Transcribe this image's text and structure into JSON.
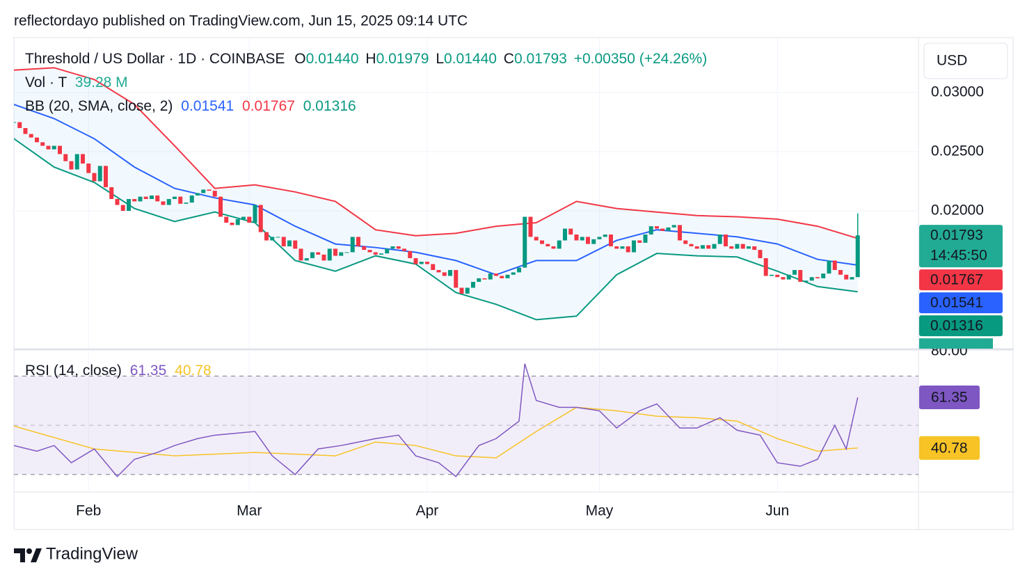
{
  "header": {
    "text": "reflectordayo published on TradingView.com, Jun 15, 2025 09:14 UTC"
  },
  "footer": {
    "brand": "TradingView"
  },
  "chart_data": {
    "type": "candlestick",
    "symbol": "Threshold / US Dollar · 1D · COINBASE",
    "currency": "USD",
    "ohlc": {
      "labels": [
        "O",
        "H",
        "L",
        "C"
      ],
      "values": [
        0.0144,
        0.01979,
        0.0144,
        0.01793
      ],
      "value_labels": [
        "0.01440",
        "0.01979",
        "0.01440",
        "0.01793"
      ]
    },
    "change_label": "+0.00350 (+24.26%)",
    "volume": {
      "label": "Vol · T",
      "value": 39.28,
      "value_label": "39.28 M"
    },
    "countdown": "14:45:50",
    "up_color": "#089981",
    "down_color": "#f23645",
    "xlim": [
      0,
      157.58
    ],
    "month_ticks": [
      {
        "value": 13,
        "label": "Feb"
      },
      {
        "value": 41,
        "label": "Mar"
      },
      {
        "value": 72,
        "label": "Apr"
      },
      {
        "value": 102,
        "label": "May"
      },
      {
        "value": 133,
        "label": "Jun"
      }
    ],
    "ylim": [
      0.00841,
      0.03459
    ],
    "yticks": [
      {
        "value": 0.03,
        "label": "0.03000"
      },
      {
        "value": 0.025,
        "label": "0.02500"
      },
      {
        "value": 0.02,
        "label": "0.02000"
      }
    ],
    "grid": true,
    "closes": [
      0.0275,
      0.027,
      0.0265,
      0.0262,
      0.0258,
      0.0255,
      0.0252,
      0.0255,
      0.0248,
      0.0242,
      0.0235,
      0.0248,
      0.024,
      0.0232,
      0.0225,
      0.0238,
      0.022,
      0.021,
      0.0205,
      0.02,
      0.021,
      0.0208,
      0.0212,
      0.021,
      0.0213,
      0.0208,
      0.0205,
      0.021,
      0.0212,
      0.0206,
      0.0207,
      0.0213,
      0.0215,
      0.0218,
      0.0217,
      0.0212,
      0.0195,
      0.019,
      0.0188,
      0.0193,
      0.0195,
      0.019,
      0.0205,
      0.0182,
      0.0175,
      0.0178,
      0.0178,
      0.017,
      0.0175,
      0.0168,
      0.0158,
      0.016,
      0.0165,
      0.0163,
      0.0158,
      0.0168,
      0.0162,
      0.0165,
      0.0165,
      0.0178,
      0.017,
      0.0167,
      0.0165,
      0.0163,
      0.0164,
      0.0168,
      0.017,
      0.0168,
      0.0166,
      0.016,
      0.0155,
      0.0157,
      0.0155,
      0.015,
      0.0148,
      0.0145,
      0.015,
      0.0135,
      0.013,
      0.0135,
      0.014,
      0.0143,
      0.0142,
      0.0147,
      0.0145,
      0.0143,
      0.0146,
      0.0148,
      0.0152,
      0.0195,
      0.0178,
      0.0175,
      0.0172,
      0.017,
      0.0168,
      0.0175,
      0.0185,
      0.018,
      0.0175,
      0.0178,
      0.0172,
      0.0176,
      0.0178,
      0.018,
      0.017,
      0.0168,
      0.017,
      0.0165,
      0.0175,
      0.0173,
      0.018,
      0.0187,
      0.0185,
      0.0183,
      0.0186,
      0.0188,
      0.0175,
      0.0172,
      0.017,
      0.0168,
      0.0171,
      0.0168,
      0.0172,
      0.018,
      0.017,
      0.0168,
      0.0172,
      0.0168,
      0.017,
      0.0167,
      0.016,
      0.0145,
      0.0146,
      0.0144,
      0.0142,
      0.0146,
      0.015,
      0.014,
      0.0141,
      0.0144,
      0.0143,
      0.0147,
      0.0158,
      0.015,
      0.0146,
      0.0142,
      0.0144
    ],
    "bb": {
      "label": "BB (20, SMA, close, 2)",
      "x": [
        0,
        7,
        14,
        21,
        28,
        35,
        42,
        49,
        56,
        63,
        70,
        77,
        84,
        91,
        98,
        105,
        112,
        119,
        126,
        133,
        140,
        147
      ],
      "basis": [
        0.029,
        0.0278,
        0.0261,
        0.0237,
        0.0219,
        0.0211,
        0.0205,
        0.0187,
        0.0172,
        0.0169,
        0.0165,
        0.0158,
        0.0146,
        0.0158,
        0.0158,
        0.0175,
        0.0184,
        0.0181,
        0.0178,
        0.0172,
        0.0159,
        0.01541
      ],
      "upper": [
        0.0319,
        0.0321,
        0.0311,
        0.029,
        0.0255,
        0.0219,
        0.0222,
        0.0216,
        0.0208,
        0.0184,
        0.0179,
        0.0181,
        0.0187,
        0.019,
        0.0208,
        0.0202,
        0.0199,
        0.0196,
        0.0195,
        0.0193,
        0.0187,
        0.01767
      ],
      "lower": [
        0.0261,
        0.0237,
        0.0224,
        0.0202,
        0.0191,
        0.0199,
        0.019,
        0.0158,
        0.0149,
        0.0162,
        0.0155,
        0.0131,
        0.0121,
        0.0108,
        0.0111,
        0.0146,
        0.0164,
        0.0162,
        0.0161,
        0.0149,
        0.0136,
        0.01316
      ],
      "basis_color": "#2962ff",
      "upper_color": "#f23645",
      "lower_color": "#089981"
    },
    "rsi": {
      "label": "RSI (14, close)",
      "ylim": [
        23.2,
        80
      ],
      "yticks": [
        {
          "value": 80,
          "label": "80.00"
        }
      ],
      "levels": [
        70,
        50,
        30
      ],
      "x": [
        0,
        4,
        7,
        10,
        14,
        18,
        21,
        25,
        28,
        32,
        35,
        42,
        45,
        49,
        53,
        57,
        60,
        63,
        67,
        70,
        74,
        77,
        81,
        84,
        88,
        89,
        91,
        95,
        98,
        102,
        105,
        109,
        112,
        116,
        119,
        123,
        126,
        130,
        133,
        137,
        140,
        143,
        145,
        147
      ],
      "values": [
        41.8,
        39.5,
        41.8,
        34.8,
        40.4,
        29.2,
        36.2,
        39,
        41.8,
        44.6,
        46,
        47.5,
        37.6,
        30,
        40.4,
        41.8,
        43.2,
        44.6,
        46,
        37.6,
        34.8,
        29.2,
        41.8,
        44.6,
        51.7,
        75,
        60.1,
        57.3,
        57.3,
        55.9,
        48.9,
        55.9,
        58.7,
        48.9,
        48.9,
        53.1,
        48,
        46,
        34.8,
        33.4,
        36.2,
        50,
        40.4,
        61.35
      ],
      "ma_x": [
        0,
        14,
        28,
        42,
        56,
        63,
        70,
        77,
        84,
        91,
        98,
        105,
        112,
        119,
        126,
        133,
        140,
        147
      ],
      "ma": [
        49.7,
        40.4,
        37.6,
        39,
        37.6,
        43.2,
        41.8,
        37.6,
        36.8,
        47.5,
        57.3,
        55.9,
        53.7,
        53.1,
        51.7,
        44.6,
        39.5,
        40.78
      ],
      "color": "#7e57c2",
      "ma_color": "#f7c325"
    }
  }
}
